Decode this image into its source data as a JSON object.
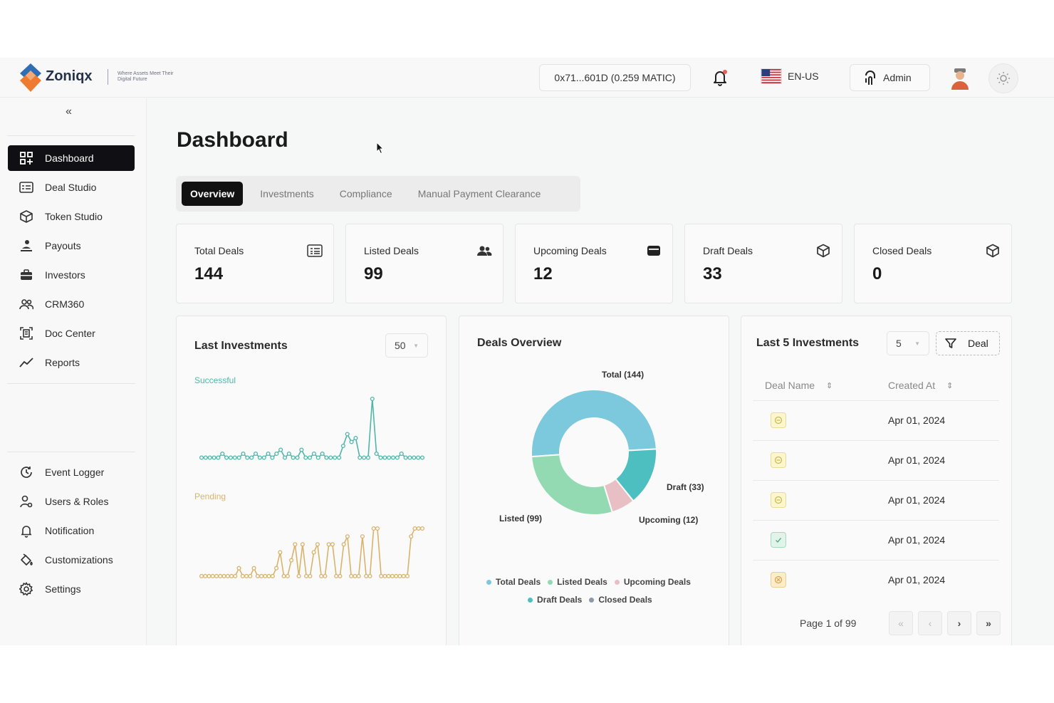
{
  "app": {
    "brand": "Zoniqx",
    "tagline": "Where Assets Meet Their Digital Future"
  },
  "header": {
    "wallet": "0x71...601D (0.259 MATIC)",
    "language": "EN-US",
    "user": "Admin"
  },
  "sidebar": {
    "collapse_icon": "«",
    "items": [
      {
        "label": "Dashboard",
        "icon": "grid-icon",
        "active": true
      },
      {
        "label": "Deal Studio",
        "icon": "list-card-icon"
      },
      {
        "label": "Token Studio",
        "icon": "cube-icon"
      },
      {
        "label": "Payouts",
        "icon": "payout-icon"
      },
      {
        "label": "Investors",
        "icon": "briefcase-icon"
      },
      {
        "label": "CRM360",
        "icon": "users-icon"
      },
      {
        "label": "Doc Center",
        "icon": "doc-scan-icon"
      },
      {
        "label": "Reports",
        "icon": "trend-icon"
      }
    ],
    "bottom_items": [
      {
        "label": "Event Logger",
        "icon": "history-icon"
      },
      {
        "label": "Users & Roles",
        "icon": "user-roles-icon"
      },
      {
        "label": "Notification",
        "icon": "bell-icon"
      },
      {
        "label": "Customizations",
        "icon": "paint-icon"
      },
      {
        "label": "Settings",
        "icon": "gear-icon"
      }
    ]
  },
  "main": {
    "title": "Dashboard",
    "tabs": [
      {
        "label": "Overview",
        "active": true
      },
      {
        "label": "Investments"
      },
      {
        "label": "Compliance"
      },
      {
        "label": "Manual Payment Clearance"
      }
    ],
    "stats": [
      {
        "label": "Total Deals",
        "value": "144",
        "icon": "list-card-icon"
      },
      {
        "label": "Listed Deals",
        "value": "99",
        "icon": "users-icon"
      },
      {
        "label": "Upcoming Deals",
        "value": "12",
        "icon": "wallet-icon"
      },
      {
        "label": "Draft Deals",
        "value": "33",
        "icon": "cube-icon"
      },
      {
        "label": "Closed Deals",
        "value": "0",
        "icon": "cube-icon"
      }
    ],
    "last_investments": {
      "title": "Last Investments",
      "select_value": "50",
      "successful_label": "Successful",
      "pending_label": "Pending"
    },
    "deals_overview": {
      "title": "Deals Overview",
      "labels": {
        "total": "Total (144)",
        "listed": "Listed (99)",
        "draft": "Draft (33)",
        "upcoming": "Upcoming (12)"
      },
      "legend": [
        "Total Deals",
        "Listed Deals",
        "Upcoming Deals",
        "Draft Deals",
        "Closed Deals"
      ]
    },
    "last5": {
      "title": "Last 5 Investments",
      "select_value": "5",
      "filter_label": "Deal",
      "columns": [
        "Deal Name",
        "Created At"
      ],
      "rows": [
        {
          "status": "pending",
          "date": "Apr 01, 2024"
        },
        {
          "status": "pending",
          "date": "Apr 01, 2024"
        },
        {
          "status": "pending",
          "date": "Apr 01, 2024"
        },
        {
          "status": "success",
          "date": "Apr 01, 2024"
        },
        {
          "status": "cancelled",
          "date": "Apr 01, 2024"
        }
      ],
      "page_text": "Page 1 of 99",
      "pager": [
        "«",
        "‹",
        "›",
        "»"
      ]
    }
  },
  "chart_data": [
    {
      "type": "line",
      "series": [
        {
          "name": "Successful",
          "values": [
            1,
            1,
            1,
            1,
            1,
            2,
            1,
            1,
            1,
            1,
            2,
            1,
            1,
            2,
            1,
            1,
            2,
            1,
            2,
            3,
            1,
            2,
            1,
            1,
            3,
            1,
            1,
            2,
            1,
            2,
            1,
            1,
            1,
            1,
            4,
            7,
            5,
            6,
            1,
            1,
            1,
            16,
            2,
            1,
            1,
            1,
            1,
            1,
            2,
            1,
            1,
            1,
            1,
            1
          ]
        },
        {
          "name": "Pending",
          "values": [
            1,
            1,
            1,
            1,
            1,
            1,
            1,
            1,
            1,
            1,
            2,
            1,
            1,
            1,
            2,
            1,
            1,
            1,
            1,
            1,
            2,
            4,
            1,
            1,
            3,
            5,
            1,
            5,
            1,
            1,
            4,
            5,
            1,
            1,
            5,
            5,
            1,
            1,
            5,
            6,
            1,
            1,
            1,
            6,
            1,
            1,
            7,
            7,
            1,
            1,
            1,
            1,
            1,
            1,
            1,
            1,
            6,
            7,
            7,
            7
          ]
        }
      ],
      "colors": {
        "successful": "#4fb6a8",
        "pending": "#d9b36b"
      }
    },
    {
      "type": "pie",
      "title": "Deals Overview",
      "categories": [
        "Total Deals",
        "Listed Deals",
        "Upcoming Deals",
        "Draft Deals",
        "Closed Deals"
      ],
      "values": [
        144,
        99,
        12,
        33,
        0
      ],
      "colors": [
        "#7cc8dd",
        "#93dab2",
        "#e9bfc6",
        "#4dbfc0",
        "#8b98a8"
      ]
    }
  ]
}
